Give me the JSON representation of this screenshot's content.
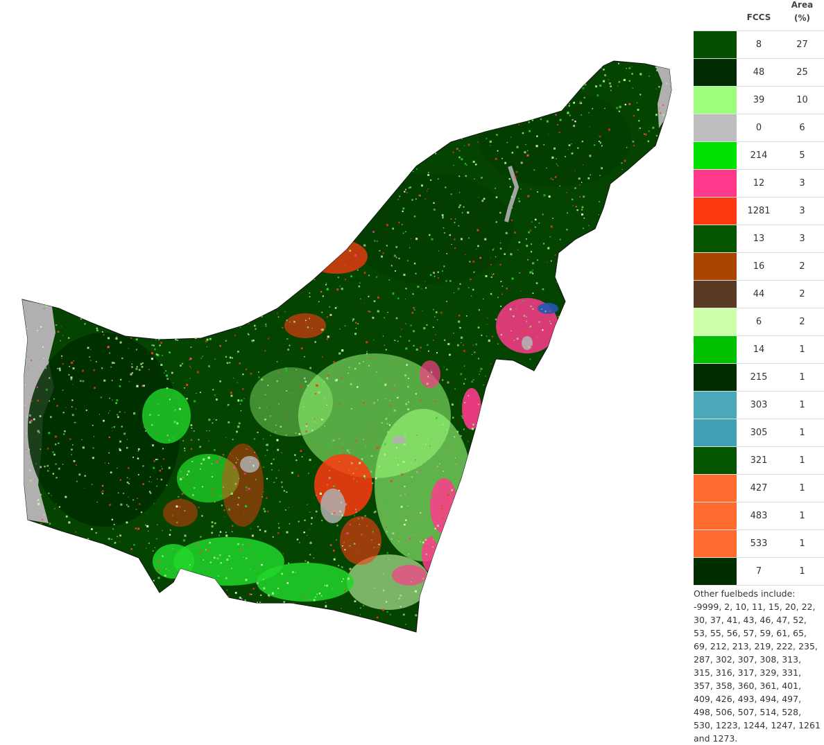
{
  "legend": {
    "header_fccs": "FCCS",
    "header_area_line1": "Area",
    "header_area_line2": "(%)",
    "rows": [
      {
        "fccs": "8",
        "area": "27",
        "color": "#044f00"
      },
      {
        "fccs": "48",
        "area": "25",
        "color": "#002b00"
      },
      {
        "fccs": "39",
        "area": "10",
        "color": "#9cfe7b"
      },
      {
        "fccs": "0",
        "area": "6",
        "color": "#bebebe"
      },
      {
        "fccs": "214",
        "area": "5",
        "color": "#00e300"
      },
      {
        "fccs": "12",
        "area": "3",
        "color": "#ff3a8c"
      },
      {
        "fccs": "1281",
        "area": "3",
        "color": "#ff3a12"
      },
      {
        "fccs": "13",
        "area": "3",
        "color": "#045400"
      },
      {
        "fccs": "16",
        "area": "2",
        "color": "#a84400"
      },
      {
        "fccs": "44",
        "area": "2",
        "color": "#5a3a24"
      },
      {
        "fccs": "6",
        "area": "2",
        "color": "#ccffaa"
      },
      {
        "fccs": "14",
        "area": "1",
        "color": "#00c000"
      },
      {
        "fccs": "215",
        "area": "1",
        "color": "#002e00"
      },
      {
        "fccs": "303",
        "area": "1",
        "color": "#4aa8b8"
      },
      {
        "fccs": "305",
        "area": "1",
        "color": "#42a0b4"
      },
      {
        "fccs": "321",
        "area": "1",
        "color": "#045400"
      },
      {
        "fccs": "427",
        "area": "1",
        "color": "#ff6a2e"
      },
      {
        "fccs": "483",
        "area": "1",
        "color": "#ff6a2e"
      },
      {
        "fccs": "533",
        "area": "1",
        "color": "#ff6a2e"
      },
      {
        "fccs": "7",
        "area": "1",
        "color": "#002e00"
      }
    ],
    "other_note": "Other fuelbeds include: -9999, 2, 10, 11, 15, 20, 22, 30, 37, 41, 43, 46, 47, 52, 53, 55, 56, 57, 59, 61, 65, 69, 212, 213, 219, 222, 235, 287, 302, 307, 308, 313, 315, 316, 317, 329, 331, 357, 358, 360, 361, 401, 409, 426, 493, 494, 497, 498, 506, 507, 514, 528, 530, 1223, 1244, 1247, 1261 and 1273."
  },
  "map": {
    "base_color": "#044400",
    "coast_color": "#b0b0b0"
  }
}
